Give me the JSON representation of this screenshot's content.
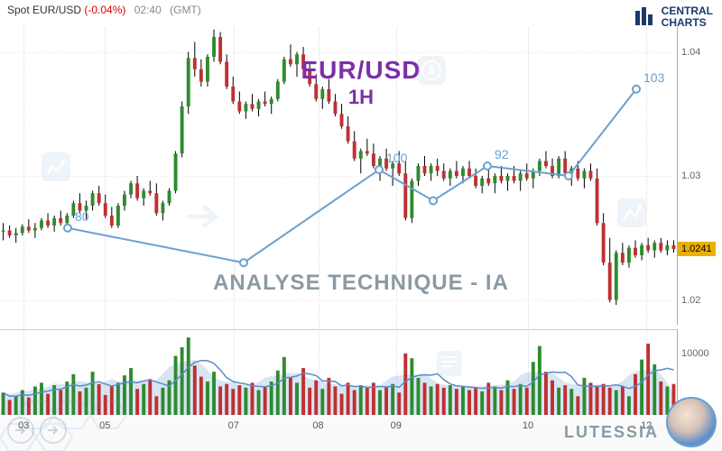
{
  "header": {
    "symbol": "Spot EUR/USD",
    "change_pct": "(-0.04%)",
    "time": "02:40",
    "tz": "(GMT)"
  },
  "logo": {
    "line1": "CENTRAL",
    "line2": "CHARTS",
    "bar_color": "#1a3a6e"
  },
  "titles": {
    "pair": "EUR/USD",
    "pair_color": "#7b2fa8",
    "timeframe": "1H",
    "analysis": "ANALYSE TECHNIQUE - IA",
    "analysis_color": "#8a9aa5"
  },
  "brand": "LUTESSIA",
  "main_chart": {
    "type": "candlestick",
    "ylim": [
      1.018,
      1.042
    ],
    "yticks": [
      1.02,
      1.03,
      1.04
    ],
    "last_price": 1.0241,
    "last_price_tag_bg": "#e8b000",
    "grid_color": "#eeeeee",
    "up_color": "#2e8b2e",
    "down_color": "#c03030",
    "wick_color": "#000000",
    "candles": [
      {
        "o": 1.0255,
        "h": 1.0262,
        "l": 1.0248,
        "c": 1.0256
      },
      {
        "o": 1.0256,
        "h": 1.026,
        "l": 1.025,
        "c": 1.0252
      },
      {
        "o": 1.0252,
        "h": 1.0258,
        "l": 1.0246,
        "c": 1.0254
      },
      {
        "o": 1.0254,
        "h": 1.0261,
        "l": 1.0252,
        "c": 1.0259
      },
      {
        "o": 1.0259,
        "h": 1.0265,
        "l": 1.0254,
        "c": 1.0256
      },
      {
        "o": 1.0256,
        "h": 1.0262,
        "l": 1.025,
        "c": 1.0258
      },
      {
        "o": 1.0258,
        "h": 1.0266,
        "l": 1.0256,
        "c": 1.0264
      },
      {
        "o": 1.0264,
        "h": 1.027,
        "l": 1.0258,
        "c": 1.026
      },
      {
        "o": 1.026,
        "h": 1.0268,
        "l": 1.0255,
        "c": 1.0266
      },
      {
        "o": 1.0266,
        "h": 1.0272,
        "l": 1.026,
        "c": 1.0262
      },
      {
        "o": 1.0262,
        "h": 1.027,
        "l": 1.0258,
        "c": 1.0268
      },
      {
        "o": 1.0268,
        "h": 1.028,
        "l": 1.0266,
        "c": 1.0278
      },
      {
        "o": 1.0278,
        "h": 1.0286,
        "l": 1.027,
        "c": 1.0272
      },
      {
        "o": 1.0272,
        "h": 1.028,
        "l": 1.0265,
        "c": 1.0276
      },
      {
        "o": 1.0276,
        "h": 1.0288,
        "l": 1.0272,
        "c": 1.0286
      },
      {
        "o": 1.0286,
        "h": 1.0292,
        "l": 1.0276,
        "c": 1.0278
      },
      {
        "o": 1.0278,
        "h": 1.0285,
        "l": 1.0266,
        "c": 1.0268
      },
      {
        "o": 1.0268,
        "h": 1.0275,
        "l": 1.0258,
        "c": 1.026
      },
      {
        "o": 1.026,
        "h": 1.0278,
        "l": 1.0258,
        "c": 1.0276
      },
      {
        "o": 1.0276,
        "h": 1.0288,
        "l": 1.0272,
        "c": 1.0285
      },
      {
        "o": 1.0285,
        "h": 1.0296,
        "l": 1.0282,
        "c": 1.0294
      },
      {
        "o": 1.0294,
        "h": 1.03,
        "l": 1.028,
        "c": 1.0282
      },
      {
        "o": 1.0282,
        "h": 1.029,
        "l": 1.0276,
        "c": 1.0288
      },
      {
        "o": 1.0288,
        "h": 1.0296,
        "l": 1.0284,
        "c": 1.0286
      },
      {
        "o": 1.0286,
        "h": 1.0294,
        "l": 1.0268,
        "c": 1.027
      },
      {
        "o": 1.027,
        "h": 1.028,
        "l": 1.0264,
        "c": 1.0278
      },
      {
        "o": 1.0278,
        "h": 1.029,
        "l": 1.0276,
        "c": 1.0288
      },
      {
        "o": 1.0288,
        "h": 1.032,
        "l": 1.0286,
        "c": 1.0318
      },
      {
        "o": 1.0318,
        "h": 1.036,
        "l": 1.0315,
        "c": 1.0356
      },
      {
        "o": 1.0356,
        "h": 1.04,
        "l": 1.035,
        "c": 1.0395
      },
      {
        "o": 1.0395,
        "h": 1.0408,
        "l": 1.038,
        "c": 1.0386
      },
      {
        "o": 1.0386,
        "h": 1.0394,
        "l": 1.0372,
        "c": 1.0376
      },
      {
        "o": 1.0376,
        "h": 1.0398,
        "l": 1.0372,
        "c": 1.0396
      },
      {
        "o": 1.0396,
        "h": 1.0418,
        "l": 1.0392,
        "c": 1.0412
      },
      {
        "o": 1.0412,
        "h": 1.0416,
        "l": 1.039,
        "c": 1.0392
      },
      {
        "o": 1.0392,
        "h": 1.0398,
        "l": 1.037,
        "c": 1.0372
      },
      {
        "o": 1.0372,
        "h": 1.038,
        "l": 1.0358,
        "c": 1.036
      },
      {
        "o": 1.036,
        "h": 1.0368,
        "l": 1.035,
        "c": 1.0352
      },
      {
        "o": 1.0352,
        "h": 1.036,
        "l": 1.0346,
        "c": 1.0358
      },
      {
        "o": 1.0358,
        "h": 1.0366,
        "l": 1.0352,
        "c": 1.0354
      },
      {
        "o": 1.0354,
        "h": 1.0362,
        "l": 1.0348,
        "c": 1.036
      },
      {
        "o": 1.036,
        "h": 1.0368,
        "l": 1.0356,
        "c": 1.0358
      },
      {
        "o": 1.0358,
        "h": 1.0364,
        "l": 1.035,
        "c": 1.0362
      },
      {
        "o": 1.0362,
        "h": 1.0378,
        "l": 1.036,
        "c": 1.0376
      },
      {
        "o": 1.0376,
        "h": 1.0396,
        "l": 1.0374,
        "c": 1.0394
      },
      {
        "o": 1.0394,
        "h": 1.0406,
        "l": 1.0388,
        "c": 1.039
      },
      {
        "o": 1.039,
        "h": 1.04,
        "l": 1.038,
        "c": 1.0398
      },
      {
        "o": 1.0398,
        "h": 1.0404,
        "l": 1.0384,
        "c": 1.0386
      },
      {
        "o": 1.0386,
        "h": 1.0392,
        "l": 1.0372,
        "c": 1.0374
      },
      {
        "o": 1.0374,
        "h": 1.0382,
        "l": 1.036,
        "c": 1.0362
      },
      {
        "o": 1.0362,
        "h": 1.0372,
        "l": 1.0354,
        "c": 1.037
      },
      {
        "o": 1.037,
        "h": 1.0378,
        "l": 1.0358,
        "c": 1.036
      },
      {
        "o": 1.036,
        "h": 1.0366,
        "l": 1.0348,
        "c": 1.035
      },
      {
        "o": 1.035,
        "h": 1.0358,
        "l": 1.0338,
        "c": 1.034
      },
      {
        "o": 1.034,
        "h": 1.0348,
        "l": 1.0326,
        "c": 1.0328
      },
      {
        "o": 1.0328,
        "h": 1.0336,
        "l": 1.0312,
        "c": 1.0314
      },
      {
        "o": 1.0314,
        "h": 1.0322,
        "l": 1.0302,
        "c": 1.032
      },
      {
        "o": 1.032,
        "h": 1.033,
        "l": 1.0316,
        "c": 1.0318
      },
      {
        "o": 1.0318,
        "h": 1.0326,
        "l": 1.0306,
        "c": 1.0308
      },
      {
        "o": 1.0308,
        "h": 1.0316,
        "l": 1.0296,
        "c": 1.0314
      },
      {
        "o": 1.0314,
        "h": 1.0322,
        "l": 1.0304,
        "c": 1.0306
      },
      {
        "o": 1.0306,
        "h": 1.0312,
        "l": 1.0292,
        "c": 1.031
      },
      {
        "o": 1.031,
        "h": 1.032,
        "l": 1.03,
        "c": 1.0302
      },
      {
        "o": 1.0302,
        "h": 1.0312,
        "l": 1.0264,
        "c": 1.0266
      },
      {
        "o": 1.0266,
        "h": 1.0298,
        "l": 1.0262,
        "c": 1.0296
      },
      {
        "o": 1.0296,
        "h": 1.031,
        "l": 1.0292,
        "c": 1.0308
      },
      {
        "o": 1.0308,
        "h": 1.0316,
        "l": 1.03,
        "c": 1.0302
      },
      {
        "o": 1.0302,
        "h": 1.031,
        "l": 1.0296,
        "c": 1.0308
      },
      {
        "o": 1.0308,
        "h": 1.0314,
        "l": 1.03,
        "c": 1.0304
      },
      {
        "o": 1.0304,
        "h": 1.031,
        "l": 1.0296,
        "c": 1.0298
      },
      {
        "o": 1.0298,
        "h": 1.0306,
        "l": 1.0292,
        "c": 1.0304
      },
      {
        "o": 1.0304,
        "h": 1.0312,
        "l": 1.0298,
        "c": 1.03
      },
      {
        "o": 1.03,
        "h": 1.0308,
        "l": 1.0294,
        "c": 1.0306
      },
      {
        "o": 1.0306,
        "h": 1.0312,
        "l": 1.0298,
        "c": 1.03
      },
      {
        "o": 1.03,
        "h": 1.0306,
        "l": 1.029,
        "c": 1.0292
      },
      {
        "o": 1.0292,
        "h": 1.03,
        "l": 1.0286,
        "c": 1.0298
      },
      {
        "o": 1.0298,
        "h": 1.0306,
        "l": 1.0292,
        "c": 1.0294
      },
      {
        "o": 1.0294,
        "h": 1.0302,
        "l": 1.0286,
        "c": 1.03
      },
      {
        "o": 1.03,
        "h": 1.0308,
        "l": 1.0294,
        "c": 1.0296
      },
      {
        "o": 1.0296,
        "h": 1.0302,
        "l": 1.0288,
        "c": 1.03
      },
      {
        "o": 1.03,
        "h": 1.0308,
        "l": 1.0294,
        "c": 1.0296
      },
      {
        "o": 1.0296,
        "h": 1.0304,
        "l": 1.0288,
        "c": 1.0302
      },
      {
        "o": 1.0302,
        "h": 1.031,
        "l": 1.0296,
        "c": 1.0298
      },
      {
        "o": 1.0298,
        "h": 1.0306,
        "l": 1.029,
        "c": 1.0304
      },
      {
        "o": 1.0304,
        "h": 1.0314,
        "l": 1.03,
        "c": 1.0312
      },
      {
        "o": 1.0312,
        "h": 1.032,
        "l": 1.0306,
        "c": 1.0308
      },
      {
        "o": 1.0308,
        "h": 1.0314,
        "l": 1.0298,
        "c": 1.03
      },
      {
        "o": 1.03,
        "h": 1.0316,
        "l": 1.0298,
        "c": 1.0314
      },
      {
        "o": 1.0314,
        "h": 1.032,
        "l": 1.03,
        "c": 1.0302
      },
      {
        "o": 1.0302,
        "h": 1.0308,
        "l": 1.0292,
        "c": 1.0306
      },
      {
        "o": 1.0306,
        "h": 1.0312,
        "l": 1.0296,
        "c": 1.0298
      },
      {
        "o": 1.0298,
        "h": 1.0306,
        "l": 1.029,
        "c": 1.0304
      },
      {
        "o": 1.0304,
        "h": 1.031,
        "l": 1.0296,
        "c": 1.0298
      },
      {
        "o": 1.0298,
        "h": 1.0306,
        "l": 1.026,
        "c": 1.0262
      },
      {
        "o": 1.0262,
        "h": 1.027,
        "l": 1.0228,
        "c": 1.023
      },
      {
        "o": 1.023,
        "h": 1.025,
        "l": 1.0198,
        "c": 1.02
      },
      {
        "o": 1.02,
        "h": 1.024,
        "l": 1.0196,
        "c": 1.0238
      },
      {
        "o": 1.0238,
        "h": 1.0246,
        "l": 1.0228,
        "c": 1.023
      },
      {
        "o": 1.023,
        "h": 1.0244,
        "l": 1.0226,
        "c": 1.0242
      },
      {
        "o": 1.0242,
        "h": 1.0248,
        "l": 1.0234,
        "c": 1.0236
      },
      {
        "o": 1.0236,
        "h": 1.0246,
        "l": 1.0232,
        "c": 1.0244
      },
      {
        "o": 1.0244,
        "h": 1.025,
        "l": 1.0238,
        "c": 1.024
      },
      {
        "o": 1.024,
        "h": 1.0248,
        "l": 1.0234,
        "c": 1.0246
      },
      {
        "o": 1.0246,
        "h": 1.025,
        "l": 1.0238,
        "c": 1.024
      },
      {
        "o": 1.024,
        "h": 1.0248,
        "l": 1.0236,
        "c": 1.0244
      },
      {
        "o": 1.0244,
        "h": 1.0248,
        "l": 1.0238,
        "c": 1.0241
      }
    ]
  },
  "overlay": {
    "line_color": "#6aa0d0",
    "line_width": 2,
    "marker_color": "#6aa0d0",
    "marker_radius": 4,
    "label_color": "#6aa0d0",
    "label_fontsize": 14,
    "points": [
      {
        "x": 0.1,
        "p": 1.0258,
        "label": "80"
      },
      {
        "x": 0.36,
        "p": 1.023,
        "label": ""
      },
      {
        "x": 0.56,
        "p": 1.0305,
        "label": "100"
      },
      {
        "x": 0.64,
        "p": 1.028,
        "label": ""
      },
      {
        "x": 0.72,
        "p": 1.0308,
        "label": "92"
      },
      {
        "x": 0.84,
        "p": 1.03,
        "label": ""
      },
      {
        "x": 0.94,
        "p": 1.037,
        "label": "103"
      }
    ]
  },
  "volume_chart": {
    "type": "bar",
    "ylim": [
      0,
      14000
    ],
    "ytick": 10000,
    "up_color": "#2e8b2e",
    "down_color": "#c03030",
    "area_color": "rgba(100,150,210,0.25)",
    "ma_color": "#5a8cc8",
    "values": [
      3800,
      2600,
      3200,
      4200,
      3000,
      4800,
      5400,
      3600,
      5000,
      4200,
      5600,
      6800,
      4000,
      4600,
      7200,
      5200,
      3400,
      4800,
      5400,
      6600,
      7800,
      4400,
      5200,
      6000,
      3200,
      4600,
      5800,
      9800,
      11200,
      12800,
      8200,
      6400,
      5600,
      7200,
      4800,
      5200,
      4400,
      5000,
      4600,
      5400,
      4200,
      4800,
      5600,
      7400,
      9600,
      6200,
      5400,
      7800,
      4600,
      5800,
      4400,
      6200,
      4800,
      3600,
      5400,
      4200,
      5000,
      4600,
      5400,
      4200,
      4800,
      5200,
      3800,
      10200,
      9400,
      6200,
      5400,
      4800,
      5200,
      4600,
      5000,
      4400,
      4800,
      4200,
      4600,
      4000,
      5400,
      4800,
      4200,
      5800,
      4400,
      5200,
      4600,
      8800,
      11400,
      7200,
      5800,
      4600,
      5000,
      4400,
      3200,
      6200,
      5400,
      4800,
      5200,
      4600,
      4200,
      4800,
      3200,
      6800,
      9200,
      11800,
      8400,
      5600,
      4800,
      5200
    ]
  },
  "x_axis": {
    "labels": [
      "03",
      "05",
      "07",
      "08",
      "09",
      "10",
      "12"
    ],
    "positions": [
      0.035,
      0.155,
      0.345,
      0.47,
      0.585,
      0.78,
      0.955
    ]
  },
  "watermarks": {
    "color": "#9cb8d8"
  }
}
